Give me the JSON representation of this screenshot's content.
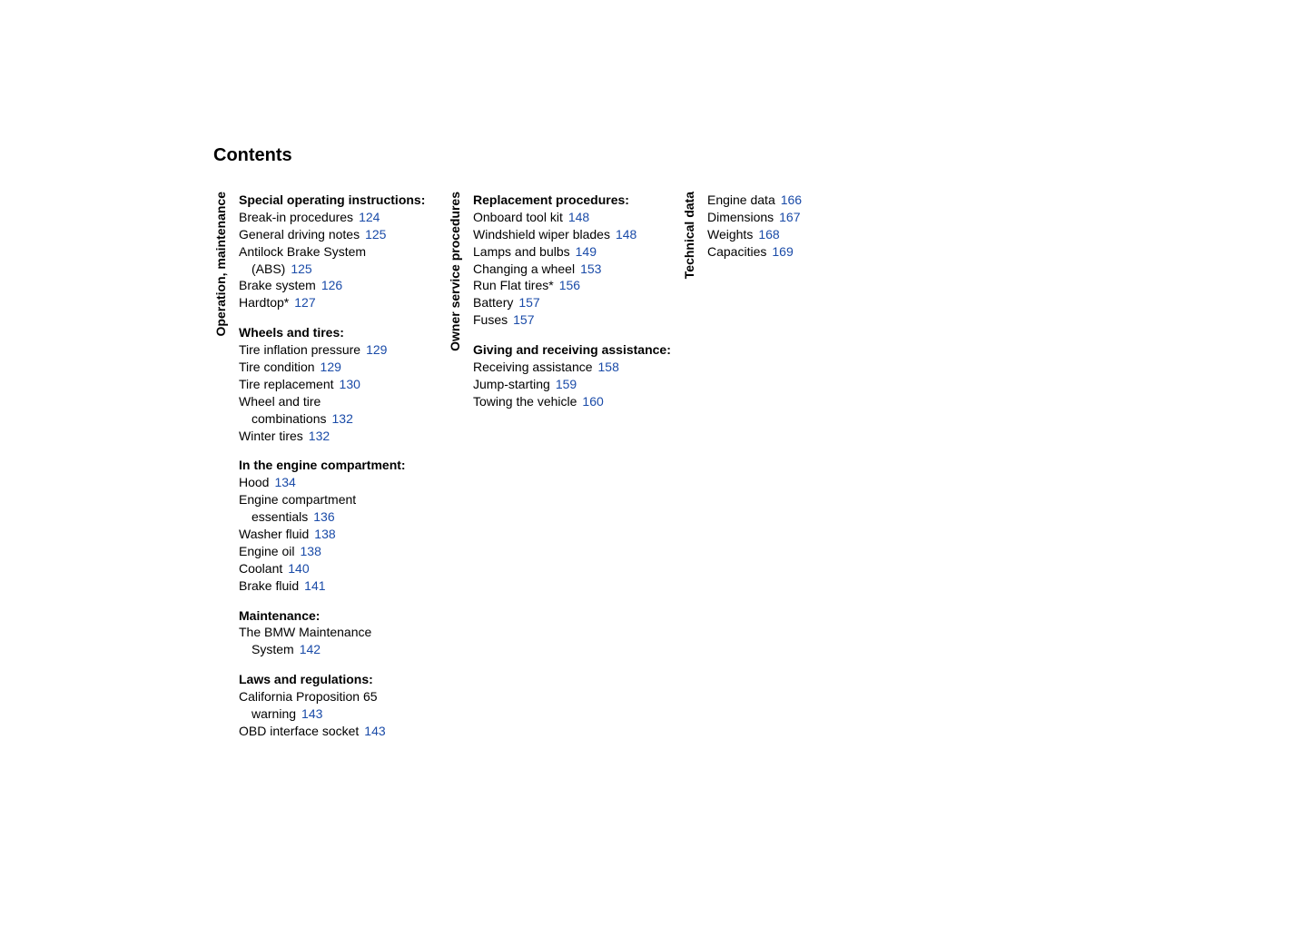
{
  "title": "Contents",
  "link_color": "#1a4ba8",
  "text_color": "#000000",
  "columns": [
    {
      "label": "Operation, maintenance",
      "sections": [
        {
          "heading": "Special operating instructions:",
          "entries": [
            {
              "text": "Break-in procedures",
              "page": "124"
            },
            {
              "text": "General driving notes",
              "page": "125"
            },
            {
              "text": "Antilock Brake System",
              "cont": "(ABS)",
              "page": "125"
            },
            {
              "text": "Brake system",
              "page": "126"
            },
            {
              "text": "Hardtop*",
              "page": "127"
            }
          ]
        },
        {
          "heading": "Wheels and tires:",
          "entries": [
            {
              "text": "Tire inflation pressure",
              "page": "129"
            },
            {
              "text": "Tire condition",
              "page": "129"
            },
            {
              "text": "Tire replacement",
              "page": "130"
            },
            {
              "text": "Wheel and tire",
              "cont": "combinations",
              "page": "132"
            },
            {
              "text": "Winter tires",
              "page": "132"
            }
          ]
        },
        {
          "heading": "In the engine compartment:",
          "entries": [
            {
              "text": "Hood",
              "page": "134"
            },
            {
              "text": "Engine compartment",
              "cont": "essentials",
              "page": "136"
            },
            {
              "text": "Washer fluid",
              "page": "138"
            },
            {
              "text": "Engine oil",
              "page": "138"
            },
            {
              "text": "Coolant",
              "page": "140"
            },
            {
              "text": "Brake fluid",
              "page": "141"
            }
          ]
        },
        {
          "heading": "Maintenance:",
          "entries": [
            {
              "text": "The BMW Maintenance",
              "cont": "System",
              "page": "142"
            }
          ]
        },
        {
          "heading": "Laws and regulations:",
          "entries": [
            {
              "text": "California Proposition 65",
              "cont": "warning",
              "page": "143"
            },
            {
              "text": "OBD interface socket",
              "page": "143"
            }
          ]
        }
      ]
    },
    {
      "label": "Owner service procedures",
      "sections": [
        {
          "heading": "Replacement procedures:",
          "entries": [
            {
              "text": "Onboard tool kit",
              "page": "148"
            },
            {
              "text": "Windshield wiper blades",
              "page": "148"
            },
            {
              "text": "Lamps and bulbs",
              "page": "149"
            },
            {
              "text": "Changing a wheel",
              "page": "153"
            },
            {
              "text": "Run Flat tires*",
              "page": "156"
            },
            {
              "text": "Battery",
              "page": "157"
            },
            {
              "text": "Fuses",
              "page": "157"
            }
          ]
        },
        {
          "heading": "Giving and receiving assistance:",
          "entries": [
            {
              "text": "Receiving assistance",
              "page": "158"
            },
            {
              "text": "Jump-starting",
              "page": "159"
            },
            {
              "text": "Towing the vehicle",
              "page": "160"
            }
          ]
        }
      ]
    },
    {
      "label": "Technical data",
      "sections": [
        {
          "heading": "",
          "entries": [
            {
              "text": "Engine data",
              "page": "166"
            },
            {
              "text": "Dimensions",
              "page": "167"
            },
            {
              "text": "Weights",
              "page": "168"
            },
            {
              "text": "Capacities",
              "page": "169"
            }
          ]
        }
      ]
    }
  ]
}
